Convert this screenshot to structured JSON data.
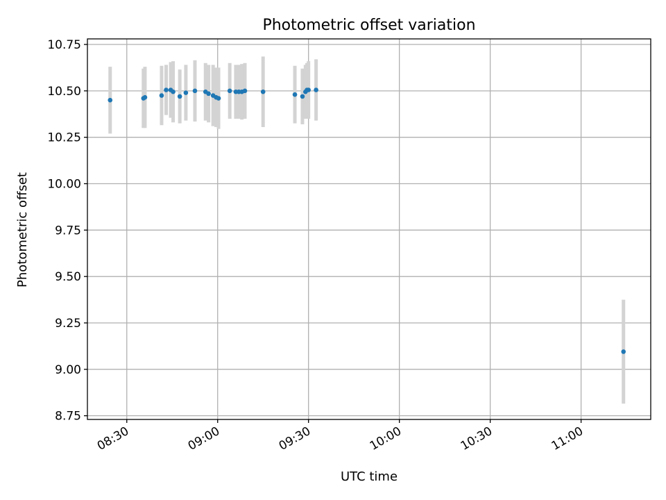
{
  "chart_data": {
    "type": "scatter",
    "title": "Photometric offset variation",
    "xlabel": "UTC time",
    "ylabel": "Photometric offset",
    "xlim": [
      "08:17",
      "11:23"
    ],
    "ylim": [
      8.73,
      10.78
    ],
    "x_ticks": [
      "08:30",
      "09:00",
      "09:30",
      "10:00",
      "10:30",
      "11:00"
    ],
    "y_ticks": [
      8.75,
      9.0,
      9.25,
      9.5,
      9.75,
      10.0,
      10.25,
      10.5,
      10.75
    ],
    "grid": true,
    "colors": {
      "point": "#1f77b4",
      "errorbar": "#d3d3d3"
    },
    "points": [
      {
        "x": "08:24.5",
        "y": 10.45,
        "yerr": 0.18
      },
      {
        "x": "08:35.5",
        "y": 10.46,
        "yerr": 0.16
      },
      {
        "x": "08:36.0",
        "y": 10.465,
        "yerr": 0.165
      },
      {
        "x": "08:41.5",
        "y": 10.475,
        "yerr": 0.16
      },
      {
        "x": "08:43.0",
        "y": 10.505,
        "yerr": 0.135
      },
      {
        "x": "08:44.5",
        "y": 10.505,
        "yerr": 0.15
      },
      {
        "x": "08:45.3",
        "y": 10.495,
        "yerr": 0.165
      },
      {
        "x": "08:47.5",
        "y": 10.47,
        "yerr": 0.145
      },
      {
        "x": "08:49.5",
        "y": 10.49,
        "yerr": 0.15
      },
      {
        "x": "08:52.5",
        "y": 10.5,
        "yerr": 0.165
      },
      {
        "x": "08:56.0",
        "y": 10.495,
        "yerr": 0.155
      },
      {
        "x": "08:57.0",
        "y": 10.485,
        "yerr": 0.155
      },
      {
        "x": "08:58.5",
        "y": 10.475,
        "yerr": 0.165
      },
      {
        "x": "08:59.5",
        "y": 10.465,
        "yerr": 0.16
      },
      {
        "x": "09:00.3",
        "y": 10.46,
        "yerr": 0.165
      },
      {
        "x": "09:04.0",
        "y": 10.5,
        "yerr": 0.15
      },
      {
        "x": "09:06.0",
        "y": 10.495,
        "yerr": 0.145
      },
      {
        "x": "09:07.0",
        "y": 10.495,
        "yerr": 0.145
      },
      {
        "x": "09:08.0",
        "y": 10.495,
        "yerr": 0.15
      },
      {
        "x": "09:09.0",
        "y": 10.5,
        "yerr": 0.15
      },
      {
        "x": "09:15.0",
        "y": 10.495,
        "yerr": 0.19
      },
      {
        "x": "09:25.5",
        "y": 10.48,
        "yerr": 0.155
      },
      {
        "x": "09:28.0",
        "y": 10.47,
        "yerr": 0.15
      },
      {
        "x": "09:29.0",
        "y": 10.495,
        "yerr": 0.145
      },
      {
        "x": "09:29.5",
        "y": 10.505,
        "yerr": 0.145
      },
      {
        "x": "09:30.0",
        "y": 10.505,
        "yerr": 0.155
      },
      {
        "x": "09:32.5",
        "y": 10.505,
        "yerr": 0.165
      },
      {
        "x": "11:14.0",
        "y": 9.095,
        "yerr": 0.28
      }
    ]
  }
}
